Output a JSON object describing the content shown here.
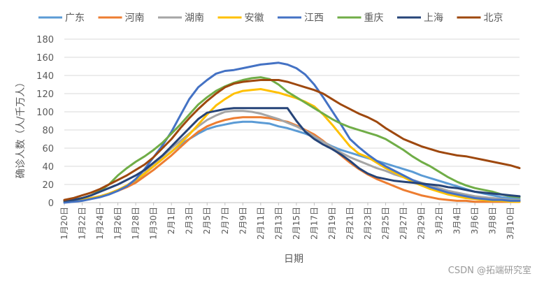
{
  "chart_data": {
    "type": "line",
    "title": "",
    "xlabel": "日期",
    "ylabel": "确诊人数（人/千万人）",
    "ylim": [
      0,
      180
    ],
    "yticks": [
      0,
      20,
      40,
      60,
      80,
      100,
      120,
      140,
      160,
      180
    ],
    "grid": "horizontal",
    "legend_position": "top",
    "x": [
      "1月20日",
      "1月21日",
      "1月22日",
      "1月23日",
      "1月24日",
      "1月25日",
      "1月26日",
      "1月27日",
      "1月28日",
      "1月29日",
      "1月30日",
      "1月31日",
      "2月1日",
      "2月2日",
      "2月3日",
      "2月4日",
      "2月5日",
      "2月6日",
      "2月7日",
      "2月8日",
      "2月9日",
      "2月10日",
      "2月11日",
      "2月12日",
      "2月13日",
      "2月14日",
      "2月15日",
      "2月16日",
      "2月17日",
      "2月18日",
      "2月19日",
      "2月20日",
      "2月21日",
      "2月22日",
      "2月23日",
      "2月24日",
      "2月25日",
      "2月26日",
      "2月27日",
      "2月28日",
      "2月29日",
      "3月1日",
      "3月2日",
      "3月3日",
      "3月4日",
      "3月5日",
      "3月6日",
      "3月7日",
      "3月8日",
      "3月9日",
      "3月10日",
      "3月11日"
    ],
    "xtick_labels": [
      "1月20日",
      "1月22日",
      "1月24日",
      "1月26日",
      "1月28日",
      "1月30日",
      "2月1日",
      "2月3日",
      "2月5日",
      "2月7日",
      "2月9日",
      "2月11日",
      "2月13日",
      "2月15日",
      "2月17日",
      "2月19日",
      "2月21日",
      "2月23日",
      "2月25日",
      "2月27日",
      "2月29日",
      "3月2日",
      "3月4日",
      "3月6日",
      "3月8日",
      "3月10日"
    ],
    "series": [
      {
        "name": "广东",
        "color": "#5B9BD5",
        "values": [
          1,
          2,
          3,
          5,
          7,
          10,
          13,
          18,
          24,
          32,
          40,
          48,
          56,
          64,
          70,
          76,
          81,
          84,
          86,
          88,
          89,
          89,
          88,
          87,
          84,
          82,
          79,
          76,
          72,
          67,
          62,
          58,
          55,
          52,
          49,
          46,
          43,
          40,
          37,
          34,
          30,
          27,
          24,
          21,
          18,
          15,
          12,
          10,
          8,
          6,
          5,
          4
        ]
      },
      {
        "name": "河南",
        "color": "#ED7D31",
        "values": [
          1,
          2,
          3,
          5,
          7,
          10,
          13,
          17,
          22,
          29,
          36,
          44,
          52,
          61,
          70,
          78,
          84,
          88,
          91,
          93,
          94,
          94,
          94,
          93,
          91,
          89,
          85,
          80,
          75,
          68,
          60,
          52,
          44,
          37,
          31,
          26,
          22,
          18,
          14,
          11,
          8,
          6,
          4,
          3,
          2,
          2,
          1,
          1,
          1,
          1,
          1,
          1
        ]
      },
      {
        "name": "湖南",
        "color": "#A5A5A5",
        "values": [
          1,
          2,
          3,
          5,
          7,
          10,
          14,
          19,
          25,
          33,
          42,
          51,
          60,
          68,
          76,
          84,
          91,
          96,
          100,
          101,
          101,
          100,
          98,
          95,
          92,
          88,
          84,
          79,
          73,
          67,
          61,
          55,
          50,
          46,
          42,
          38,
          35,
          31,
          28,
          25,
          22,
          19,
          16,
          13,
          11,
          9,
          7,
          6,
          5,
          4,
          3,
          3
        ]
      },
      {
        "name": "安徽",
        "color": "#FFC000",
        "values": [
          1,
          2,
          3,
          5,
          7,
          10,
          14,
          19,
          25,
          32,
          40,
          48,
          56,
          65,
          75,
          86,
          97,
          107,
          114,
          120,
          123,
          124,
          125,
          123,
          121,
          118,
          115,
          111,
          106,
          97,
          86,
          74,
          62,
          54,
          50,
          44,
          38,
          33,
          28,
          23,
          19,
          15,
          12,
          9,
          7,
          5,
          4,
          3,
          2,
          2,
          1,
          1
        ]
      },
      {
        "name": "江西",
        "color": "#4472C4",
        "values": [
          0,
          1,
          2,
          4,
          6,
          9,
          13,
          18,
          26,
          37,
          50,
          63,
          78,
          96,
          114,
          127,
          135,
          142,
          145,
          146,
          148,
          150,
          152,
          153,
          154,
          152,
          148,
          141,
          130,
          116,
          101,
          86,
          70,
          61,
          53,
          46,
          40,
          35,
          30,
          25,
          21,
          17,
          14,
          11,
          9,
          7,
          5,
          4,
          3,
          3,
          2,
          2
        ]
      },
      {
        "name": "重庆",
        "color": "#70AD47",
        "values": [
          2,
          3,
          5,
          8,
          13,
          20,
          30,
          38,
          45,
          51,
          58,
          66,
          76,
          86,
          97,
          108,
          116,
          123,
          128,
          132,
          135,
          137,
          138,
          136,
          130,
          122,
          116,
          110,
          104,
          98,
          92,
          87,
          83,
          80,
          77,
          74,
          70,
          64,
          58,
          51,
          45,
          40,
          34,
          28,
          23,
          19,
          16,
          14,
          12,
          9,
          7,
          6
        ]
      },
      {
        "name": "上海",
        "color": "#264478",
        "values": [
          2,
          3,
          5,
          8,
          12,
          16,
          20,
          25,
          30,
          36,
          44,
          52,
          62,
          72,
          82,
          92,
          99,
          101,
          103,
          104,
          104,
          104,
          104,
          104,
          104,
          104,
          90,
          78,
          70,
          64,
          59,
          53,
          46,
          38,
          32,
          28,
          26,
          24,
          23,
          22,
          21,
          20,
          19,
          17,
          16,
          14,
          12,
          11,
          10,
          9,
          8,
          7
        ]
      },
      {
        "name": "北京",
        "color": "#9E480E",
        "values": [
          3,
          5,
          8,
          11,
          15,
          20,
          25,
          30,
          36,
          42,
          50,
          60,
          70,
          82,
          93,
          103,
          112,
          120,
          127,
          131,
          133,
          134,
          135,
          135,
          135,
          133,
          130,
          127,
          124,
          120,
          114,
          108,
          103,
          98,
          94,
          89,
          82,
          76,
          70,
          66,
          62,
          59,
          56,
          54,
          52,
          51,
          49,
          47,
          45,
          43,
          41,
          38
        ]
      }
    ]
  },
  "watermark": "CSDN @拓端研究室"
}
